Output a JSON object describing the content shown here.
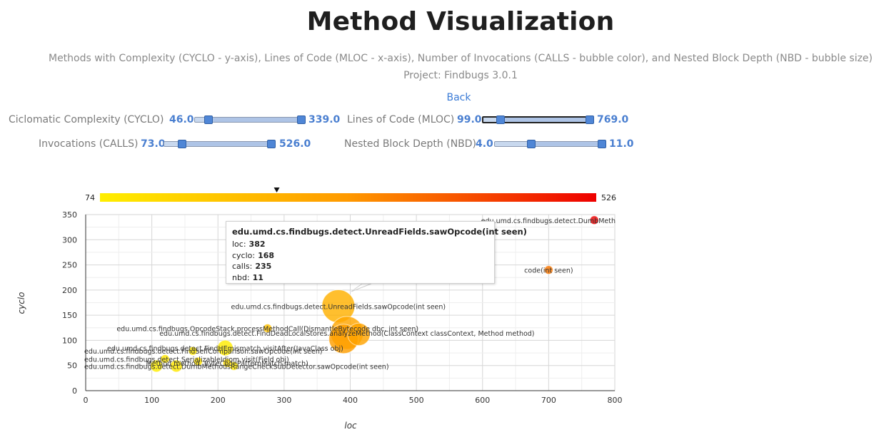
{
  "header": {
    "title": "Method Visualization",
    "subtitle": "Methods with Complexity (CYCLO - y-axis), Lines of Code (MLOC - x-axis), Number of Invocations (CALLS - bubble color), and Nested Block Depth (NBD - bubble size)",
    "project": "Project: Findbugs 3.0.1",
    "back_label": "Back"
  },
  "filters": {
    "cyclo": {
      "label": "Ciclomatic Complexity (CYCLO)",
      "min": "46.0",
      "max": "339.0",
      "range": [
        46,
        339
      ],
      "frac": [
        0.1,
        1.0
      ]
    },
    "mloc": {
      "label": "Lines of Code (MLOC)",
      "min": "99.0",
      "max": "769.0",
      "range": [
        99,
        769
      ],
      "frac": [
        0.14,
        1.0
      ]
    },
    "calls": {
      "label": "Invocations (CALLS)",
      "min": "73.0",
      "max": "526.0",
      "range": [
        73,
        526
      ],
      "frac": [
        0.14,
        1.0
      ]
    },
    "nbd": {
      "label": "Nested Block Depth (NBD)",
      "min": "4.0",
      "max": "11.0",
      "range": [
        4,
        11
      ],
      "frac": [
        0.32,
        1.0
      ]
    }
  },
  "colors": {
    "low": "#ffee00",
    "mid": "#ff9900",
    "high": "#ee0000",
    "slider_handle": "#4f86d6",
    "link": "#3b7bd6"
  },
  "chart_data": {
    "type": "scatter",
    "xlabel": "loc",
    "ylabel": "cyclo",
    "xlim": [
      0,
      800
    ],
    "ylim": [
      0,
      350
    ],
    "xticks": [
      "0",
      "100",
      "200",
      "300",
      "400",
      "500",
      "600",
      "700",
      "800"
    ],
    "yticks": [
      "0",
      "50",
      "100",
      "150",
      "200",
      "250",
      "300",
      "350"
    ],
    "grid": true,
    "colorbar": {
      "min_label": "74",
      "max_label": "526",
      "min": 74,
      "max": 526,
      "marker": 235
    },
    "points": [
      {
        "x": 769,
        "y": 339,
        "calls": 526,
        "nbd": 4,
        "label": "edu.umd.cs.findbugs.detect.DumbMeth"
      },
      {
        "x": 382,
        "y": 168,
        "calls": 235,
        "nbd": 11,
        "label": "edu.umd.cs.findbugs.detect.UnreadFields.sawOpcode(int seen)"
      },
      {
        "x": 395,
        "y": 115,
        "calls": 265,
        "nbd": 11,
        "label": "edu.umd.cs.findbugs.detect.FindDeadLocalStores.analyzeMethod(ClassContext classContext, Method method)"
      },
      {
        "x": 390,
        "y": 103,
        "calls": 285,
        "nbd": 10,
        "label": ""
      },
      {
        "x": 413,
        "y": 112,
        "calls": 270,
        "nbd": 8,
        "label": ""
      },
      {
        "x": 275,
        "y": 124,
        "calls": 190,
        "nbd": 4,
        "label": "edu.umd.cs.findbugs.OpcodeStack.processMethodCall(DismantleBytecode dbc, int seen)"
      },
      {
        "x": 211,
        "y": 85,
        "calls": 80,
        "nbd": 6,
        "label": "edu.umd.cs.findbugs.detect.FindHEmismatch.visitAfter(JavaClass obj)"
      },
      {
        "x": 162,
        "y": 79,
        "calls": 90,
        "nbd": 4,
        "label": "edu.umd.cs.findbugs.detect.FindSelfComparison.sawOpcode(int seen)"
      },
      {
        "x": 120,
        "y": 63,
        "calls": 95,
        "nbd": 4,
        "label": "edu.umd.cs.findbugs.detect.SerializableIdiom.visit(Field obj)"
      },
      {
        "x": 224,
        "y": 49,
        "calls": 85,
        "nbd": 4,
        "label": "edu.umd.cs.findbugs.detect.DumbMethodsRangeCheckSubDetector.sawOpcode(int seen)"
      },
      {
        "x": 214,
        "y": 55,
        "calls": 110,
        "nbd": 4,
        "label": "Method method, ByteCodePatternMatch match)"
      },
      {
        "x": 107,
        "y": 49,
        "calls": 75,
        "nbd": 5,
        "label": ""
      },
      {
        "x": 137,
        "y": 49,
        "calls": 90,
        "nbd": 5,
        "label": ""
      },
      {
        "x": 170,
        "y": 58,
        "calls": 100,
        "nbd": 4,
        "label": ""
      },
      {
        "x": 700,
        "y": 240,
        "calls": 350,
        "nbd": 4,
        "label": "code(int seen)"
      }
    ],
    "tooltip": {
      "title": "edu.umd.cs.findbugs.detect.UnreadFields.sawOpcode(int seen)",
      "rows": [
        {
          "k": "loc:",
          "v": "382"
        },
        {
          "k": "cyclo:",
          "v": "168"
        },
        {
          "k": "calls:",
          "v": "235"
        },
        {
          "k": "nbd:",
          "v": "11"
        }
      ]
    }
  }
}
